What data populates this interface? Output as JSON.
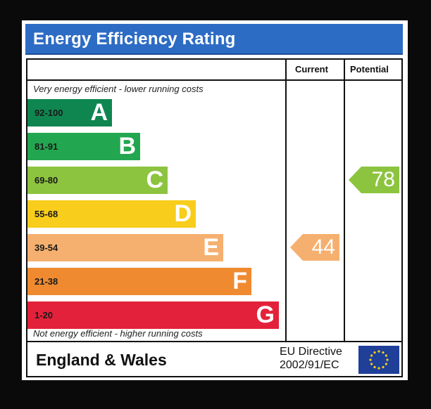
{
  "title": "Energy Efficiency Rating",
  "columns": {
    "current": "Current",
    "potential": "Potential"
  },
  "top_caption": "Very energy efficient - lower running costs",
  "bottom_caption": "Not energy efficient - higher running costs",
  "region": "England & Wales",
  "directive": {
    "line1": "EU Directive",
    "line2": "2002/91/EC"
  },
  "icons": {
    "eu_flag": "eu-flag-icon"
  },
  "chart_data": {
    "type": "bar",
    "categories": [
      "A",
      "B",
      "C",
      "D",
      "E",
      "F",
      "G"
    ],
    "ranges": [
      "92-100",
      "81-91",
      "69-80",
      "55-68",
      "39-54",
      "21-38",
      "1-20"
    ],
    "band_colors": [
      "#0f8650",
      "#22a650",
      "#8cc43f",
      "#f8cd1c",
      "#f5b06f",
      "#ef8a30",
      "#e4213a"
    ],
    "current": {
      "value": 44,
      "band": "E",
      "color": "#f5b06f"
    },
    "potential": {
      "value": 78,
      "band": "C",
      "color": "#8cc43f"
    }
  }
}
